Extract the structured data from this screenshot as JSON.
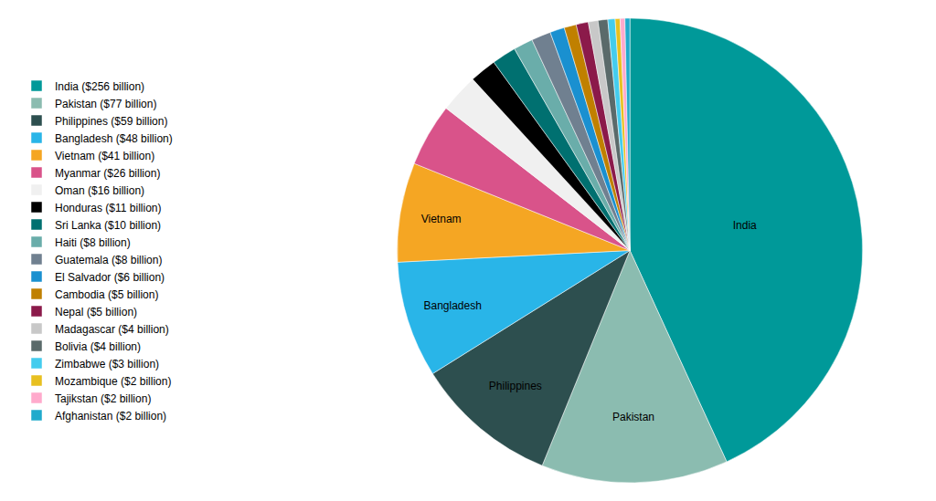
{
  "chart_data": {
    "type": "pie",
    "categories": [
      "India ($256 billion)",
      "Pakistan ($77 billion)",
      "Philippines ($59 billion)",
      "Bangladesh ($48 billion)",
      "Vietnam ($41 billion)",
      "Myanmar ($26 billion)",
      "Oman ($16 billion)",
      "Honduras ($11 billion)",
      "Sri Lanka ($10 billion)",
      "Haiti ($8 billion)",
      "Guatemala ($8 billion)",
      "El Salvador ($6 billion)",
      "Cambodia ($5 billion)",
      "Nepal ($5 billion)",
      "Madagascar ($4 billion)",
      "Bolivia ($4 billion)",
      "Zimbabwe ($3 billion)",
      "Mozambique ($2 billion)",
      "Tajikstan ($2 billion)",
      "Afghanistan ($2 billion)"
    ],
    "values": [
      256,
      77,
      59,
      48,
      41,
      26,
      16,
      11,
      10,
      8,
      8,
      6,
      5,
      5,
      4,
      4,
      3,
      2,
      2,
      2
    ],
    "slice_labels": [
      "India",
      "Pakistan",
      "Philippines",
      "Bangladesh",
      "Vietnam",
      null,
      null,
      null,
      null,
      null,
      null,
      null,
      null,
      null,
      null,
      null,
      null,
      null,
      null,
      null
    ],
    "colors": [
      "#009999",
      "#8bbcb0",
      "#2d4f4f",
      "#29b5e8",
      "#f5a623",
      "#d9538a",
      "#f0f0f0",
      "#000000",
      "#007070",
      "#6aadaa",
      "#708090",
      "#1a90d0",
      "#c08000",
      "#8b1a4a",
      "#c8c8c8",
      "#5a6a6a",
      "#44ccee",
      "#e8c020",
      "#ffaacc",
      "#20aacc"
    ],
    "legend": "left"
  }
}
